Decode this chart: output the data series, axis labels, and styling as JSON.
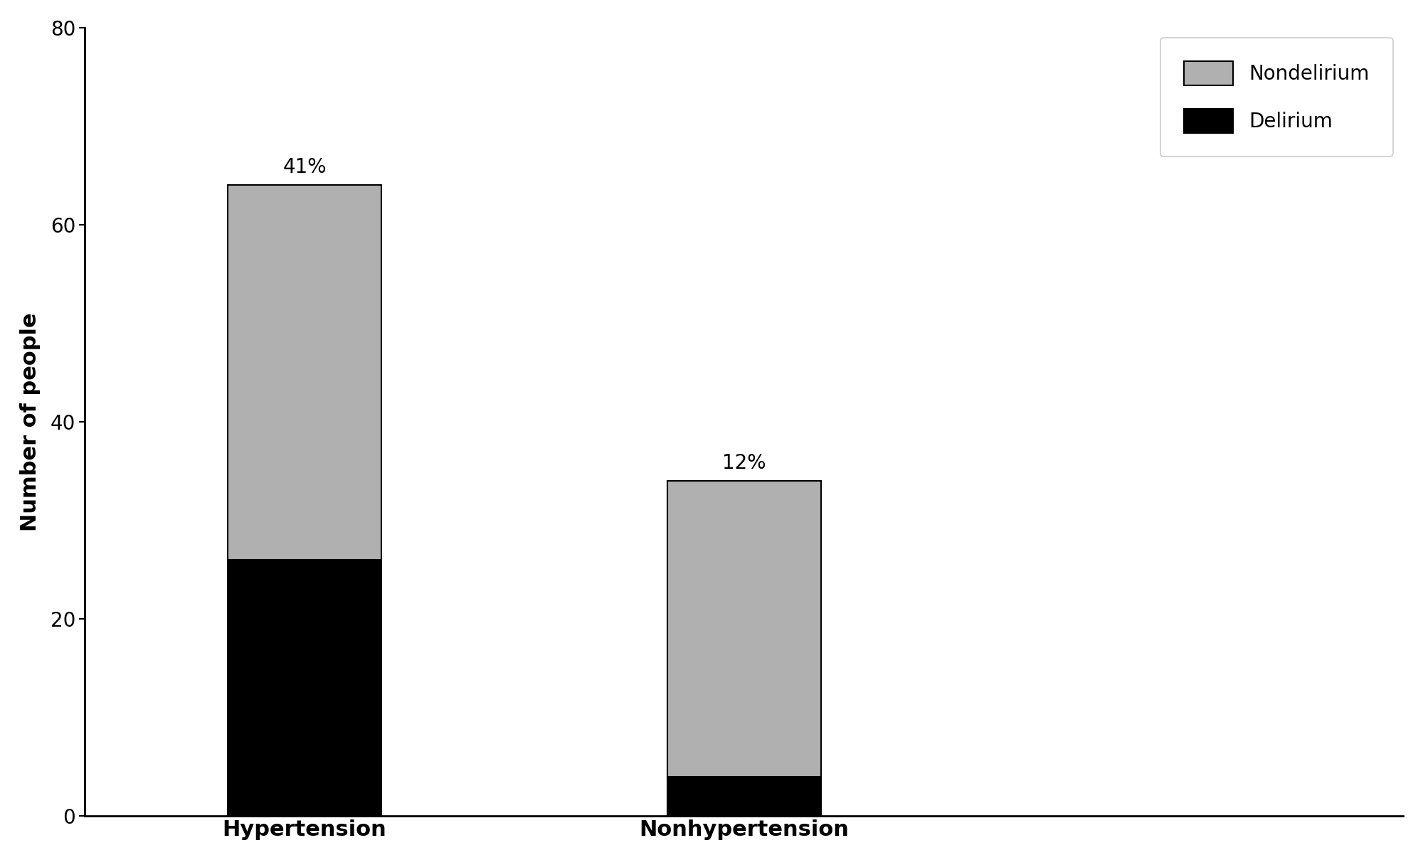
{
  "categories": [
    "Hypertension",
    "Nonhypertension"
  ],
  "delirium_values": [
    26,
    4
  ],
  "nondelirium_values": [
    38,
    30
  ],
  "total_labels": [
    "41%",
    "12%"
  ],
  "delirium_color": "#000000",
  "nondelirium_color": "#b0b0b0",
  "ylabel": "Number of people",
  "ylim": [
    0,
    80
  ],
  "yticks": [
    0,
    20,
    40,
    60,
    80
  ],
  "legend_labels": [
    "Nondelirium",
    "Delirium"
  ],
  "bar_width": 0.35,
  "background_color": "#ffffff",
  "label_fontsize": 22,
  "tick_fontsize": 20,
  "annotation_fontsize": 20,
  "legend_fontsize": 20,
  "bar_edge_color": "#000000",
  "xlim": [
    -0.5,
    2.5
  ]
}
